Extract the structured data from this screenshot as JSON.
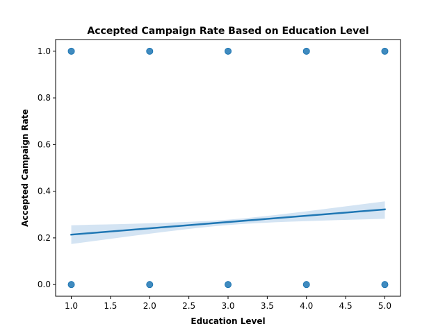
{
  "chart_data": {
    "type": "scatter",
    "title": "Accepted Campaign Rate Based on Education Level",
    "xlabel": "Education Level",
    "ylabel": "Accepted Campaign Rate",
    "xlim": [
      0.8,
      5.2
    ],
    "ylim": [
      -0.05,
      1.05
    ],
    "x_ticks": [
      "1.0",
      "1.5",
      "2.0",
      "2.5",
      "3.0",
      "3.5",
      "4.0",
      "4.5",
      "5.0"
    ],
    "y_ticks": [
      "0.0",
      "0.2",
      "0.4",
      "0.6",
      "0.8",
      "1.0"
    ],
    "grid": false,
    "series": [
      {
        "kind": "points",
        "color": "#1f77b4",
        "points": [
          [
            1.0,
            0.0
          ],
          [
            2.0,
            0.0
          ],
          [
            3.0,
            0.0
          ],
          [
            4.0,
            0.0
          ],
          [
            5.0,
            0.0
          ],
          [
            1.0,
            1.0
          ],
          [
            2.0,
            1.0
          ],
          [
            3.0,
            1.0
          ],
          [
            4.0,
            1.0
          ],
          [
            5.0,
            1.0
          ]
        ]
      },
      {
        "kind": "regression-line",
        "color": "#1f77b4",
        "x": [
          1.0,
          5.0
        ],
        "y": [
          0.214,
          0.322
        ],
        "ci_lower": [
          0.17,
          0.286
        ],
        "ci_upper": [
          0.26,
          0.357
        ],
        "ci_color": "#c6dbef"
      }
    ]
  }
}
